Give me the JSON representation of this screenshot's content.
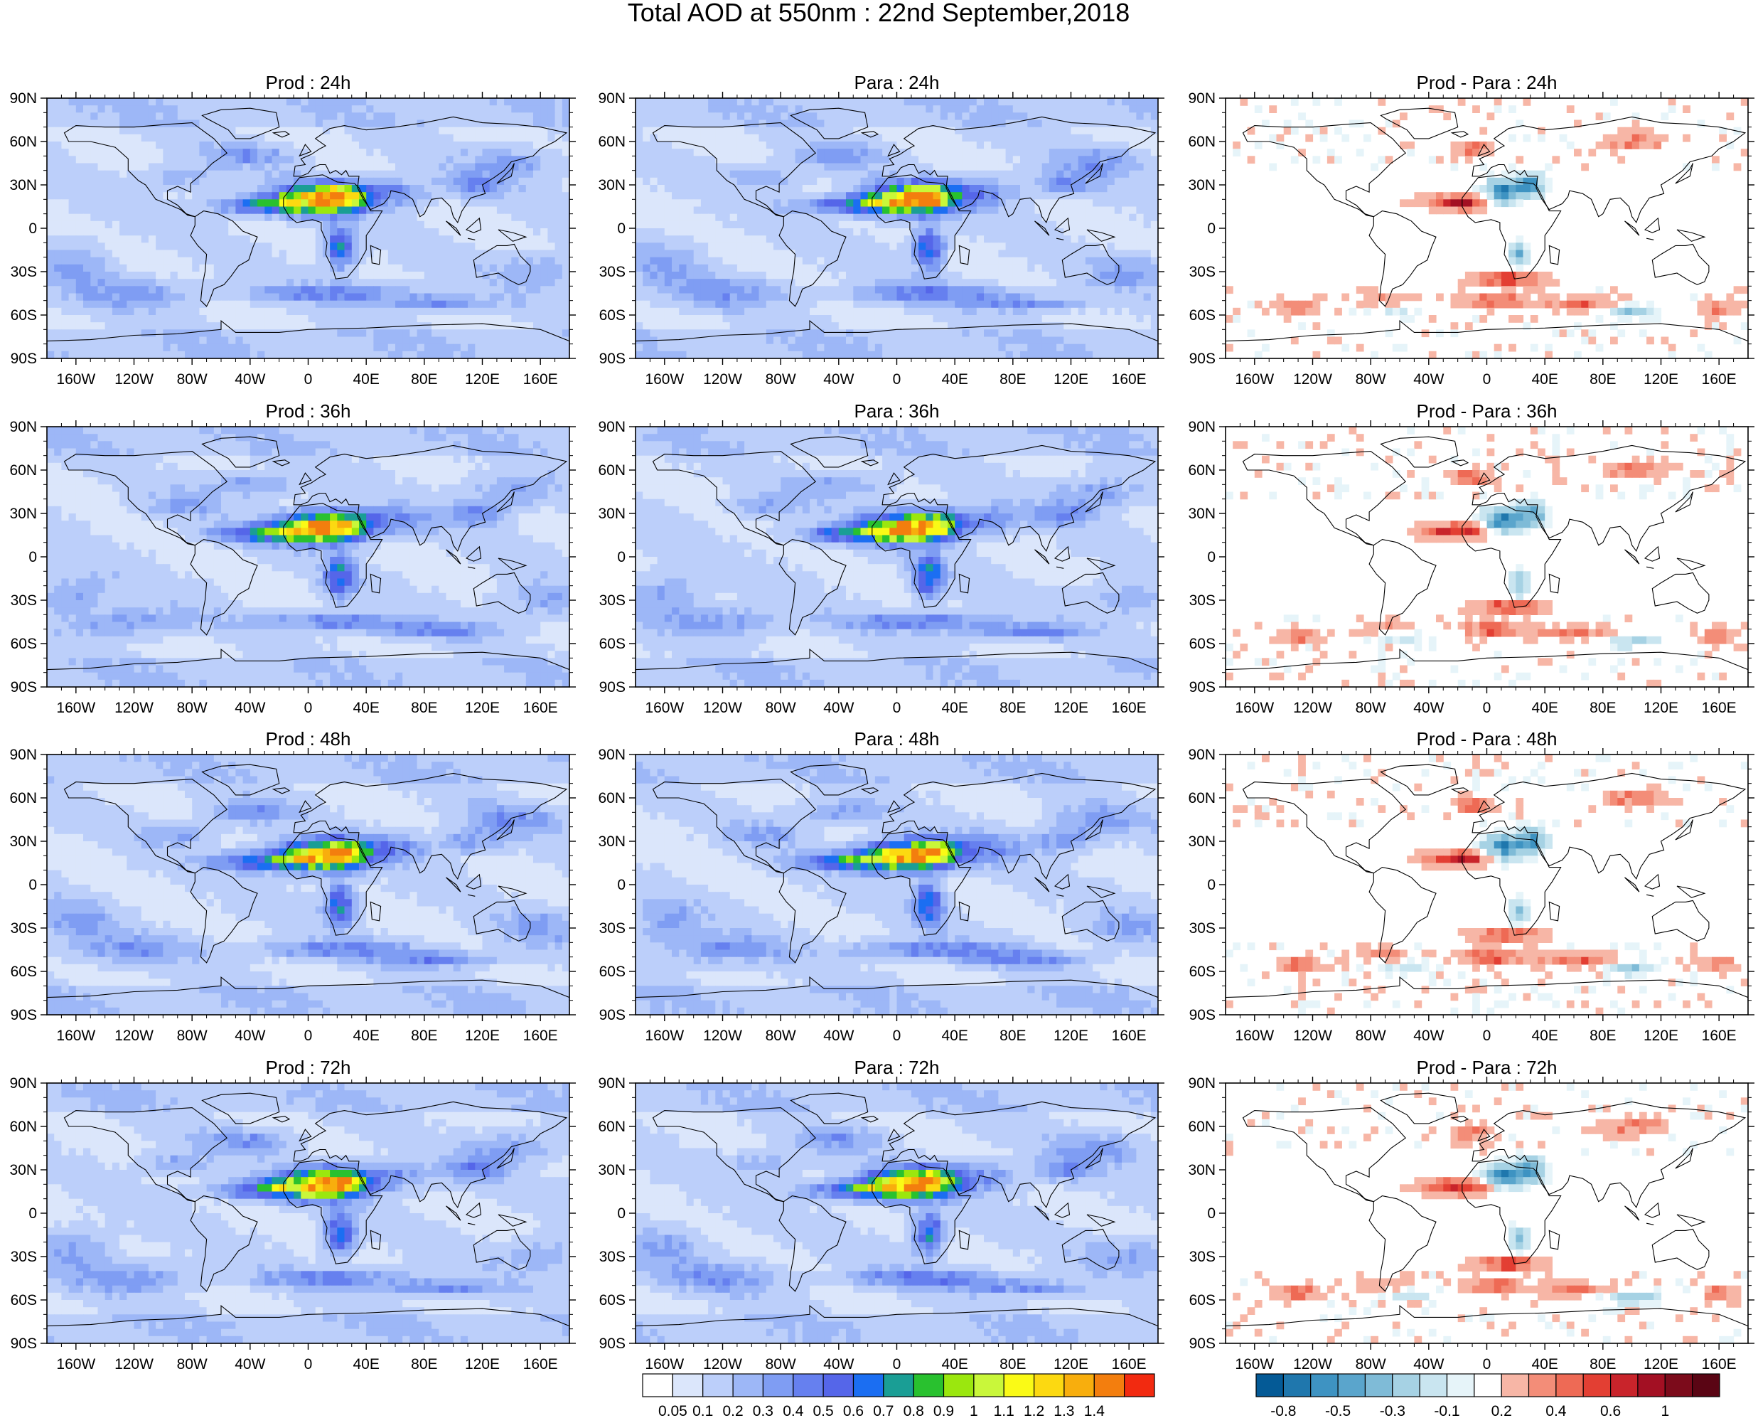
{
  "figure": {
    "title": "Total AOD at 550nm : 22nd September,2018"
  },
  "chart_data": {
    "type": "heatmap",
    "lat_ticks": [
      "90N",
      "60N",
      "30N",
      "0",
      "30S",
      "60S",
      "90S"
    ],
    "lon_ticks": [
      "160W",
      "120W",
      "80W",
      "40W",
      "0",
      "40E",
      "80E",
      "120E",
      "160E"
    ],
    "panels": [
      {
        "title": "Prod : 24h",
        "kind": "aod",
        "seed": 11,
        "lead": 24
      },
      {
        "title": "Para : 24h",
        "kind": "aod",
        "seed": 12,
        "lead": 24
      },
      {
        "title": "Prod - Para : 24h",
        "kind": "diff",
        "seed": 13,
        "lead": 24
      },
      {
        "title": "Prod : 36h",
        "kind": "aod",
        "seed": 21,
        "lead": 36
      },
      {
        "title": "Para : 36h",
        "kind": "aod",
        "seed": 22,
        "lead": 36
      },
      {
        "title": "Prod - Para : 36h",
        "kind": "diff",
        "seed": 23,
        "lead": 36
      },
      {
        "title": "Prod : 48h",
        "kind": "aod",
        "seed": 31,
        "lead": 48
      },
      {
        "title": "Para : 48h",
        "kind": "aod",
        "seed": 32,
        "lead": 48
      },
      {
        "title": "Prod - Para : 48h",
        "kind": "diff",
        "seed": 33,
        "lead": 48
      },
      {
        "title": "Prod : 72h",
        "kind": "aod",
        "seed": 41,
        "lead": 72
      },
      {
        "title": "Para : 72h",
        "kind": "aod",
        "seed": 42,
        "lead": 72
      },
      {
        "title": "Prod - Para : 72h",
        "kind": "diff",
        "seed": 43,
        "lead": 72
      }
    ],
    "aod_colorbar": {
      "labels": [
        "0.05",
        "0.1",
        "0.2",
        "0.3",
        "0.4",
        "0.5",
        "0.6",
        "0.7",
        "0.8",
        "0.9",
        "1",
        "1.1",
        "1.2",
        "1.3",
        "1.4"
      ],
      "colors": [
        "#ffffff",
        "#dbe6fb",
        "#bccffa",
        "#9db7f7",
        "#7f9df3",
        "#6680ef",
        "#5566e9",
        "#1b6ef2",
        "#1a9e95",
        "#29c12f",
        "#9be70e",
        "#c9f73a",
        "#fafa16",
        "#fcd911",
        "#f8ae0d",
        "#f37e0e",
        "#f22a10"
      ]
    },
    "diff_colorbar": {
      "labels": [
        "-0.8",
        "-0.5",
        "-0.3",
        "-0.1",
        "0.2",
        "0.4",
        "0.6",
        "1"
      ],
      "label_slots": [
        1,
        3,
        5,
        7,
        9,
        11,
        13,
        15
      ],
      "colors": [
        "#045a96",
        "#1f77ad",
        "#3e93c2",
        "#5aa5cc",
        "#7fbbd7",
        "#a6d2e4",
        "#c9e5f0",
        "#e6f4f9",
        "#ffffff",
        "#f7b6a6",
        "#f38d78",
        "#ee6a55",
        "#e33f33",
        "#c9242b",
        "#a31023",
        "#7c0b1b",
        "#5a0514"
      ]
    }
  }
}
